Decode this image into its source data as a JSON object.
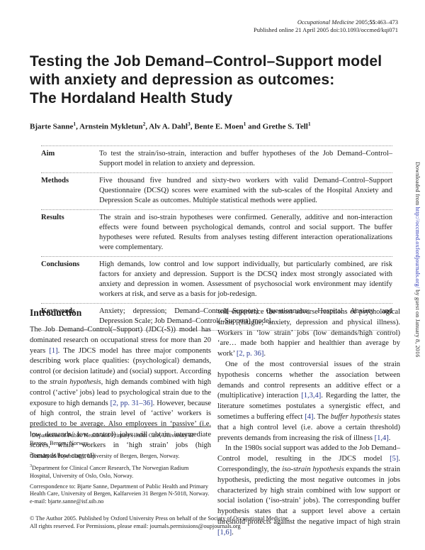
{
  "header": {
    "journal_line_segments": [
      {
        "t": "Occupational Medicine",
        "s": "i"
      },
      {
        "t": " 2005;"
      },
      {
        "t": "55",
        "s": "b"
      },
      {
        "t": ":463–473"
      }
    ],
    "published_line": "Published online 21 April 2005 doi:10.1093/occmed/kqi071"
  },
  "title": {
    "lines": [
      "Testing the Job Demand–Control–Support model",
      "with anxiety and depression as outcomes:",
      "The Hordaland Health Study"
    ]
  },
  "authors": {
    "segments": [
      {
        "t": "Bjarte Sanne"
      },
      {
        "t": "1",
        "s": "sup"
      },
      {
        "t": ", Arnstein Mykletun"
      },
      {
        "t": "2",
        "s": "sup"
      },
      {
        "t": ", Alv A. Dahl"
      },
      {
        "t": "3",
        "s": "sup"
      },
      {
        "t": ", Bente E. Moen"
      },
      {
        "t": "1",
        "s": "sup"
      },
      {
        "t": " and Grethe S. Tell"
      },
      {
        "t": "1",
        "s": "sup"
      }
    ]
  },
  "abstract": {
    "rows": [
      {
        "label": "Aim",
        "text": "To test the strain/iso-strain, interaction and buffer hypotheses of the Job Demand–Control–Support model in relation to anxiety and depression."
      },
      {
        "label": "Methods",
        "text": "Five thousand five hundred and sixty-two workers with valid Demand–Control–Support Questionnaire (DCSQ) scores were examined with the sub-scales of the Hospital Anxiety and Depression Scale as outcomes. Multiple statistical methods were applied."
      },
      {
        "label": "Results",
        "text": "The strain and iso-strain hypotheses were confirmed. Generally, additive and non-interaction effects were found between psychological demands, control and social support. The buffer hypotheses were refuted. Results from analyses testing different interaction operationalizations were complementary."
      },
      {
        "label": "Conclusions",
        "text": "High demands, low control and low support individually, but particularly combined, are risk factors for anxiety and depression. Support is the DCSQ index most strongly associated with anxiety and depression in women. Assessment of psychosocial work environment may identify workers at risk, and serve as a basis for job-redesign."
      },
      {
        "label": "Key words",
        "text": "Anxiety; depression; Demand–Control(–Support) Questionnaire; Hospital Anxiety and Depression Scale; Job Demand–Control(–Support) model."
      }
    ]
  },
  "introduction": {
    "heading": "Introduction",
    "left_paragraph": {
      "segments": [
        {
          "t": "The Job Demand–Control(–Support) (JDC(-S)) model has dominated research on occupational stress for more than 20 years "
        },
        {
          "t": "[1]",
          "s": "ref"
        },
        {
          "t": ". The JDCS model has three major components describing work place qualities: (psychological) demands, control (or decision latitude) and (social) support. According to the "
        },
        {
          "t": "strain hypothesis",
          "s": "i"
        },
        {
          "t": ", high demands combined with high control (‘active’ jobs) lead to psychological strain due to the exposure to high demands "
        },
        {
          "t": "[2, pp. 31–36]",
          "s": "ref"
        },
        {
          "t": ". However, because of high control, the strain level of ‘active’ workers is predicted to be average. Also employees in ‘passive’ (i.e. low demands/ low control) jobs will obtain intermediate scores, while workers in ‘high strain’ jobs (high demands/low control)"
        }
      ]
    },
    "right_paragraphs": [
      {
        "segments": [
          {
            "t": "will experience the most adverse reactions of psychological strain (fatigue, anxiety, depression and physical illness). Workers in ‘low strain’ jobs (low demands/high control) ‘are… made both happier and healthier than average by work’ "
          },
          {
            "t": "[2, p. 36]",
            "s": "ref"
          },
          {
            "t": "."
          }
        ]
      },
      {
        "segments": [
          {
            "t": "One of the most controversial issues of the strain hypothesis concerns whether the association between demands and control represents an additive effect or a (multiplicative) interaction "
          },
          {
            "t": "[1,3,4]",
            "s": "ref"
          },
          {
            "t": ". Regarding the latter, the literature sometimes postulates a synergistic effect, and sometimes a buffering effect "
          },
          {
            "t": "[4]",
            "s": "ref"
          },
          {
            "t": ". The "
          },
          {
            "t": "buffer hypothesis",
            "s": "i"
          },
          {
            "t": " states that a high control level (i.e. above a certain threshold) prevents demands from increasing the risk of illness "
          },
          {
            "t": "[1,4]",
            "s": "ref"
          },
          {
            "t": "."
          }
        ]
      },
      {
        "segments": [
          {
            "t": "In the 1980s social support was added to the Job Demand–Control model, resulting in the JDCS model "
          },
          {
            "t": "[5]",
            "s": "ref"
          },
          {
            "t": ". Correspondingly, the "
          },
          {
            "t": "iso-strain hypothesis",
            "s": "i"
          },
          {
            "t": " expands the strain hypothesis, predicting the most negative outcomes in jobs characterized by high strain combined with low support or social isolation (‘iso-strain’ jobs). The corresponding buffer hypothesis states that a support level above a certain threshold protects against the negative impact of high strain "
          },
          {
            "t": "[1,6]",
            "s": "ref"
          },
          {
            "t": "."
          }
        ]
      }
    ]
  },
  "footnotes": {
    "items": [
      {
        "segments": [
          {
            "t": "1",
            "s": "sup"
          },
          {
            "t": "Department of Public Health and Primary Health Care, University of Bergen, Bergen, Norway."
          }
        ]
      },
      {
        "segments": [
          {
            "t": "2",
            "s": "sup"
          },
          {
            "t": "Faculty of Psychology, University of Bergen, Bergen, Norway."
          }
        ]
      },
      {
        "segments": [
          {
            "t": "3",
            "s": "sup"
          },
          {
            "t": "Department for Clinical Cancer Research, The Norwegian Radium Hospital, University of Oslo, Oslo, Norway."
          }
        ]
      },
      {
        "segments": [
          {
            "t": "Correspondence to: Bjarte Sanne, Department of Public Health and Primary Health Care, University of Bergen, Kalfarveien 31 Bergen N-5018, Norway. e-mail: bjarte.sanne@isf.uib.no"
          }
        ]
      }
    ]
  },
  "sidebar": {
    "segments": [
      {
        "t": "Downloaded from "
      },
      {
        "t": "http://occmed.oxfordjournals.org/",
        "s": "link"
      },
      {
        "t": " by guest on January 8, 2016"
      }
    ]
  },
  "footer": {
    "line1": "© The Author 2005. Published by Oxford University Press on behalf of the Society of Occupational Medicine.",
    "line2": "All rights reserved. For Permissions, please email: journals.permissions@oupjournals.org"
  },
  "colors": {
    "citation_blue": "#27388f",
    "url_blue": "#2a35b5",
    "text": "#1c1c1c"
  }
}
